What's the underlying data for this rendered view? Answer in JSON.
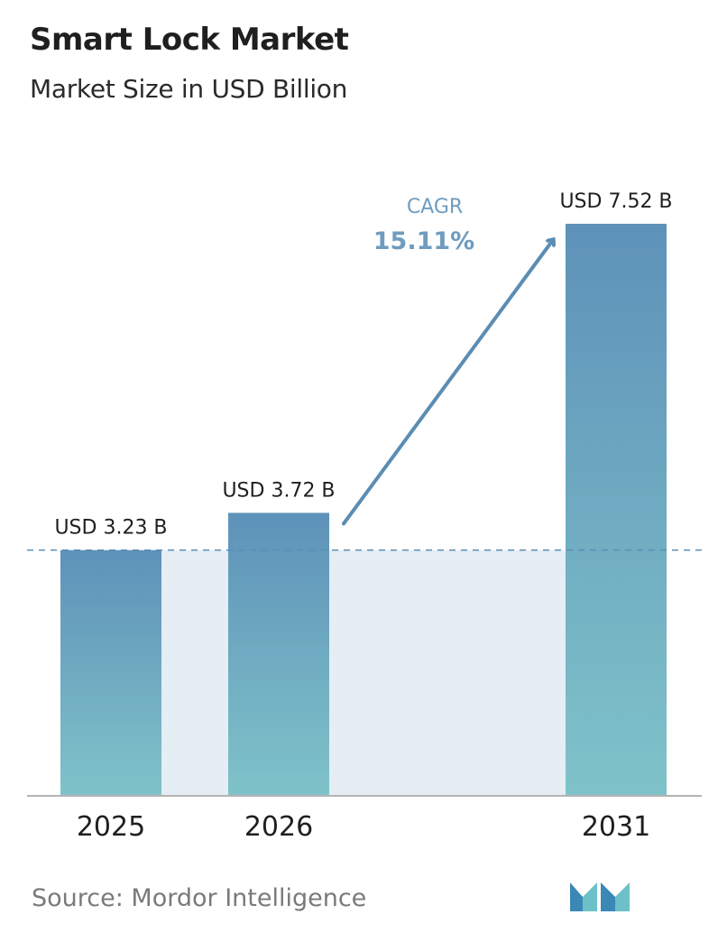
{
  "header": {
    "title": "Smart Lock Market",
    "subtitle": "Market Size in USD Billion"
  },
  "footer": {
    "source": "Source:  Mordor Intelligence",
    "logo_icon": "mordor-intelligence-logo-icon"
  },
  "colors": {
    "bar_top": "#5e92b9",
    "bar_bottom": "#7fc3c9",
    "band": "#e5edf5",
    "arrow": "#5b8db3",
    "cagr_label": "#6f9cbf",
    "axis": "#b4b4b4",
    "dashed": "#5b8db3"
  },
  "cagr": {
    "label": "CAGR",
    "value": "15.11%"
  },
  "chart_data": {
    "type": "bar",
    "title": "Smart Lock Market",
    "subtitle": "Market Size in USD Billion",
    "categories": [
      "2025",
      "2026",
      "2031"
    ],
    "values": [
      3.23,
      3.72,
      7.52
    ],
    "value_labels": [
      "USD 3.23 B",
      "USD 3.72 B",
      "USD 7.52 B"
    ],
    "ylim": [
      0,
      7.52
    ],
    "xlabel": "",
    "ylabel": "",
    "grid": false,
    "baseline_reference": 3.23,
    "annotation": "CAGR 15.11%"
  }
}
